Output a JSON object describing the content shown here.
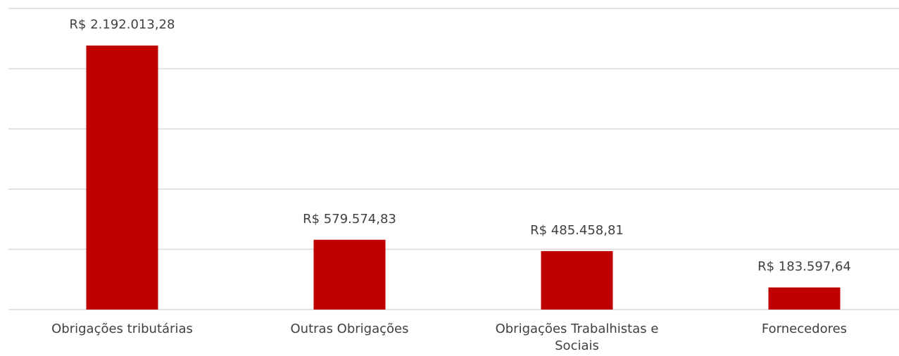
{
  "chart_data": {
    "type": "bar",
    "categories": [
      "Obrigações tributárias",
      "Outras Obrigações",
      "Obrigações Trabalhistas e Sociais",
      "Fornecedores"
    ],
    "values": [
      2192013.28,
      579574.83,
      485458.81,
      183597.64
    ],
    "value_labels": [
      "R$ 2.192.013,28",
      "R$ 579.574,83",
      "R$ 485.458,81",
      "R$ 183.597,64"
    ],
    "color": "#c00000",
    "ylim": [
      0,
      2500000
    ],
    "yticks": [
      0,
      500000,
      1000000,
      1500000,
      2000000,
      2500000
    ],
    "grid": true
  }
}
